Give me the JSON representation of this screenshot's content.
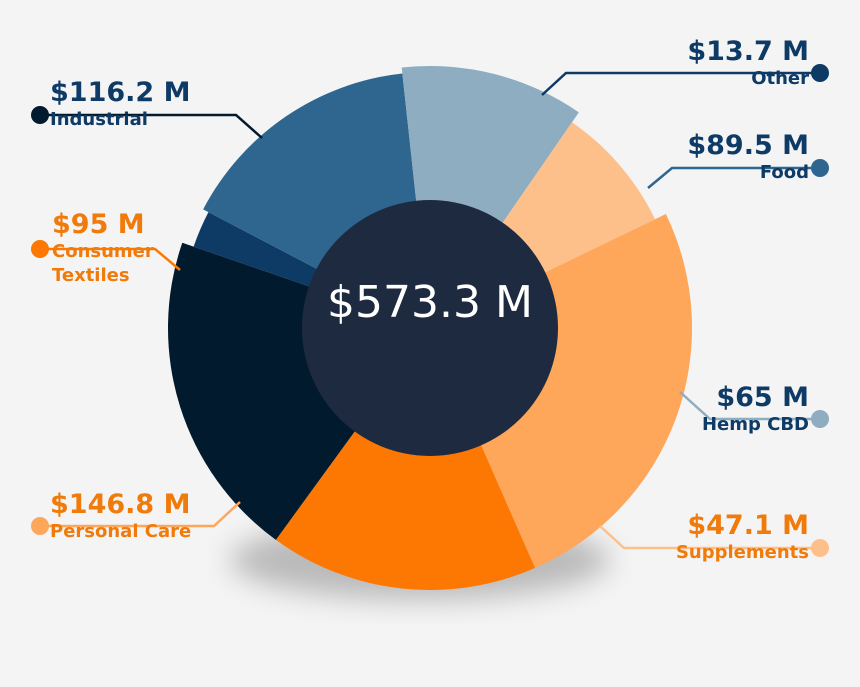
{
  "chart_data": {
    "type": "pie",
    "subtype": "donut",
    "total_label": "$573.3 M",
    "unit": "$M",
    "slices": [
      {
        "name": "Other",
        "value": 13.7,
        "value_label": "$13.7 M",
        "color": "#0e3a66"
      },
      {
        "name": "Food",
        "value": 89.5,
        "value_label": "$89.5 M",
        "color": "#2e6690"
      },
      {
        "name": "Hemp CBD",
        "value": 65,
        "value_label": "$65 M",
        "color": "#8eadc1"
      },
      {
        "name": "Supplements",
        "value": 47.1,
        "value_label": "$47.1 M",
        "color": "#fec08b"
      },
      {
        "name": "Personal Care",
        "value": 146.8,
        "value_label": "$146.8 M",
        "color": "#fea65a"
      },
      {
        "name": "Consumer Textiles",
        "value": 95,
        "value_label": "$95 M",
        "color": "#fd7803",
        "label_lines": [
          "Consumer",
          "Textiles"
        ]
      },
      {
        "name": "Industrial",
        "value": 116.2,
        "value_label": "$116.2 M",
        "color": "#011a2e"
      }
    ],
    "center_color": "#1e2a40",
    "blue_text": "#0e3a66",
    "orange_text": "#f07a0a"
  }
}
